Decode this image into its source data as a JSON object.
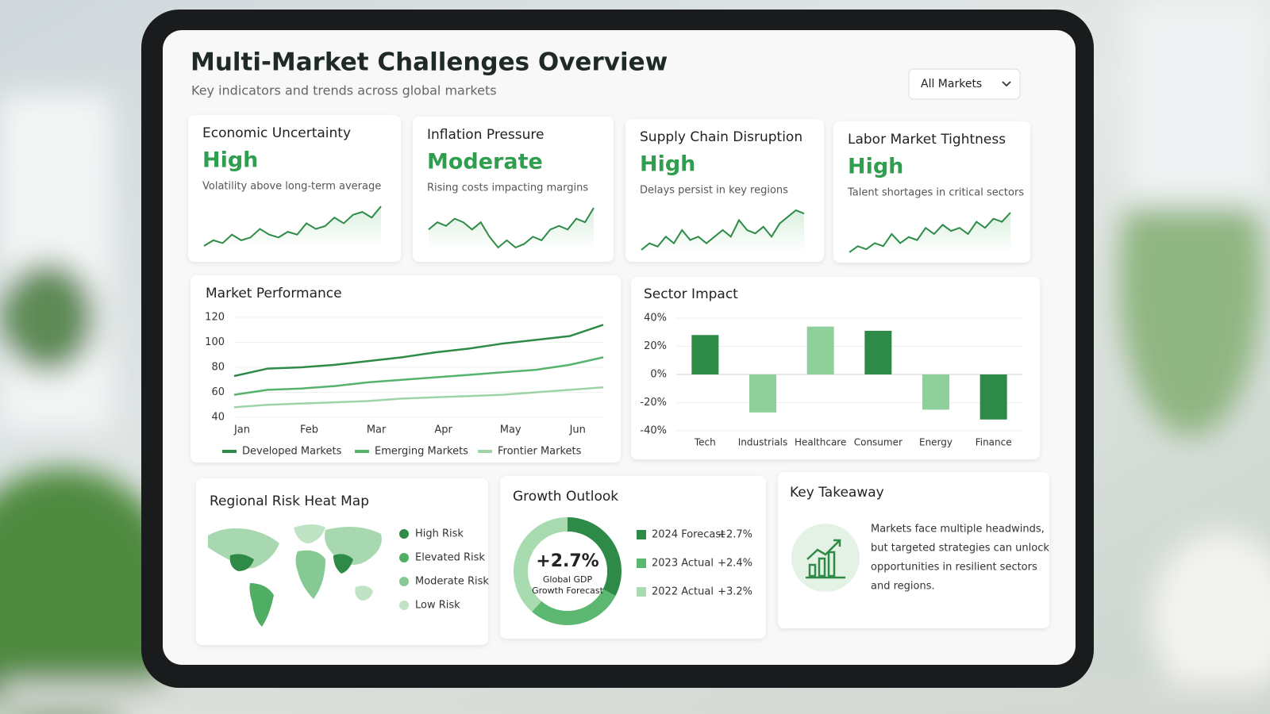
{
  "header": {
    "title": "Multi-Market Challenges Overview",
    "subtitle": "Key indicators and trends across global markets",
    "filter": "All Markets"
  },
  "kpis": [
    {
      "title": "Economic Uncertainty",
      "level": "High",
      "note": "Volatility above long-term average",
      "trend": [
        2,
        3,
        2.5,
        4,
        3,
        3.5,
        5,
        4,
        3.5,
        4.5,
        4,
        6,
        5,
        5.5,
        7,
        6,
        7.5,
        8,
        7,
        9
      ]
    },
    {
      "title": "Inflation Pressure",
      "level": "Moderate",
      "note": "Rising costs impacting margins",
      "trend": [
        5,
        6,
        5.5,
        6.5,
        6,
        5,
        6,
        4,
        2.5,
        3.5,
        2.5,
        3,
        4,
        3.5,
        5,
        5.5,
        5,
        6.5,
        6,
        8
      ]
    },
    {
      "title": "Supply Chain Disruption",
      "level": "High",
      "note": "Delays persist in key regions",
      "trend": [
        2,
        3,
        2.5,
        4,
        3,
        5,
        3.5,
        4,
        3,
        4,
        5,
        4,
        6.5,
        5,
        4.5,
        5.5,
        4,
        6,
        7,
        8,
        7.5
      ]
    },
    {
      "title": "Labor Market Tightness",
      "level": "High",
      "note": "Talent shortages in critical sectors",
      "trend": [
        2,
        3,
        2.5,
        3.5,
        3,
        5,
        3.5,
        4.5,
        4,
        6,
        5,
        6.5,
        5.5,
        6,
        5,
        7,
        6,
        7.5,
        7,
        8.5
      ]
    }
  ],
  "chart_data": [
    {
      "type": "line",
      "title": "Market Performance",
      "categories": [
        "Jan",
        null,
        "Feb",
        null,
        "Mar",
        null,
        "Apr",
        null,
        "May",
        null,
        "Jun",
        null
      ],
      "series": [
        {
          "name": "Developed Markets",
          "color": "#2e8b47",
          "values": [
            73,
            79,
            80,
            82,
            85,
            88,
            92,
            95,
            99,
            102,
            105,
            114
          ]
        },
        {
          "name": "Emerging Markets",
          "color": "#56b36c",
          "values": [
            58,
            62,
            63,
            65,
            68,
            70,
            72,
            74,
            76,
            78,
            82,
            88
          ]
        },
        {
          "name": "Frontier Markets",
          "color": "#9fd4a8",
          "values": [
            48,
            50,
            51,
            52,
            53,
            55,
            56,
            57,
            58,
            60,
            62,
            64
          ]
        }
      ],
      "ylim": [
        40,
        120
      ],
      "yticks": [
        40,
        60,
        80,
        100,
        120
      ],
      "grid": true
    },
    {
      "type": "bar",
      "title": "Sector Impact",
      "categories": [
        "Tech",
        "Industrials",
        "Healthcare",
        "Consumer",
        "Energy",
        "Finance"
      ],
      "values": [
        28,
        -27,
        34,
        31,
        -25,
        -32
      ],
      "colors": [
        "#2e8b47",
        "#8fd09a",
        "#8fd09a",
        "#2e8b47",
        "#8fd09a",
        "#2e8b47"
      ],
      "ylim": [
        -40,
        40
      ],
      "yticks": [
        {
          "value": -40,
          "label": "-40%"
        },
        {
          "value": -20,
          "label": "-20%"
        },
        {
          "value": 0,
          "label": "0%"
        },
        {
          "value": 20,
          "label": "20%"
        },
        {
          "value": 40,
          "label": "40%"
        }
      ],
      "grid": true
    },
    {
      "type": "pie",
      "title": "Growth Outlook",
      "center_value": "+2.7%",
      "center_label": [
        "Global GDP",
        "Growth Forecast"
      ],
      "categories": [
        "2024 Forecast",
        "2023 Actual",
        "2022 Actual"
      ],
      "values": [
        2.7,
        2.4,
        3.2
      ],
      "value_labels": [
        "+2.7%",
        "+2.4%",
        "+3.2%"
      ],
      "colors": [
        "#2e8b47",
        "#5cb870",
        "#a8dbb0"
      ]
    }
  ],
  "heat_map": {
    "title": "Regional Risk Heat Map",
    "legend": [
      {
        "label": "High Risk",
        "color": "#2e8b47"
      },
      {
        "label": "Elevated Risk",
        "color": "#4fae64"
      },
      {
        "label": "Moderate Risk",
        "color": "#86c993"
      },
      {
        "label": "Low Risk",
        "color": "#bfe3c4"
      }
    ]
  },
  "takeaway": {
    "title": "Key Takeaway",
    "text": [
      "Markets face multiple headwinds,",
      "but targeted strategies can unlock",
      "opportunities in resilient sectors",
      "and regions."
    ]
  }
}
